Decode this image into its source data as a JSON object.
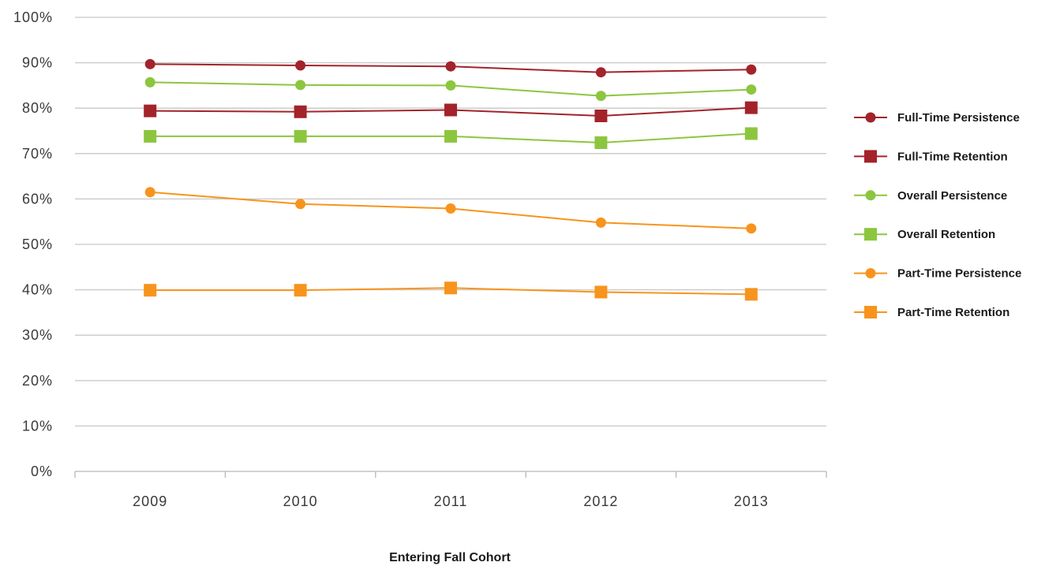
{
  "chart_data": {
    "type": "line",
    "categories": [
      "2009",
      "2010",
      "2011",
      "2012",
      "2013"
    ],
    "xlabel": "Entering Fall Cohort",
    "ylabel": "",
    "ylim": [
      0,
      100
    ],
    "y_ticks": [
      "0%",
      "10%",
      "20%",
      "30%",
      "40%",
      "50%",
      "60%",
      "70%",
      "80%",
      "90%",
      "100%"
    ],
    "grid": true,
    "legend_position": "right",
    "series": [
      {
        "name": "Full-Time Persistence",
        "values": [
          89.7,
          89.4,
          89.2,
          87.9,
          88.5
        ],
        "color": "#a3232a",
        "marker": "circle"
      },
      {
        "name": "Full-Time Retention",
        "values": [
          79.4,
          79.2,
          79.6,
          78.3,
          80.1
        ],
        "color": "#a3232a",
        "marker": "square"
      },
      {
        "name": "Overall Persistence",
        "values": [
          85.7,
          85.1,
          85.0,
          82.7,
          84.1
        ],
        "color": "#8cc63f",
        "marker": "circle"
      },
      {
        "name": "Overall Retention",
        "values": [
          73.8,
          73.8,
          73.8,
          72.4,
          74.4
        ],
        "color": "#8cc63f",
        "marker": "square"
      },
      {
        "name": "Part-Time Persistence",
        "values": [
          61.5,
          58.9,
          57.9,
          54.8,
          53.5
        ],
        "color": "#f7941d",
        "marker": "circle"
      },
      {
        "name": "Part-Time Retention",
        "values": [
          39.9,
          39.9,
          40.4,
          39.5,
          39.0
        ],
        "color": "#f7941d",
        "marker": "square"
      }
    ]
  }
}
